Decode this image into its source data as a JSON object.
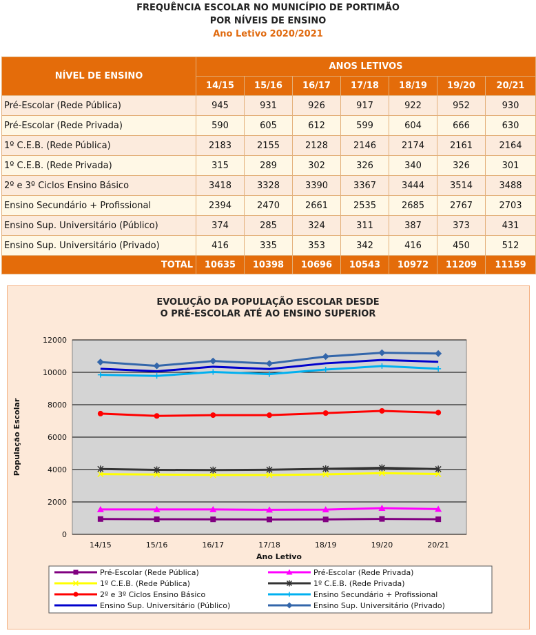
{
  "titles": {
    "line1": "FREQUÊNCIA ESCOLAR NO MUNICÍPIO DE PORTIMÃO",
    "line2": "POR NÍVEIS DE ENSINO",
    "line3": "Ano Letivo 2020/2021"
  },
  "table": {
    "level_header": "NÍVEL DE ENSINO",
    "years_header": "ANOS LETIVOS",
    "years": [
      "14/15",
      "15/16",
      "16/17",
      "17/18",
      "18/19",
      "19/20",
      "20/21"
    ],
    "rows": [
      {
        "label": "Pré-Escolar (Rede Pública)",
        "values": [
          "945",
          "931",
          "926",
          "917",
          "922",
          "952",
          "930"
        ]
      },
      {
        "label": "Pré-Escolar (Rede Privada)",
        "values": [
          "590",
          "605",
          "612",
          "599",
          "604",
          "666",
          "630"
        ]
      },
      {
        "label": "1º C.E.B. (Rede Pública)",
        "values": [
          "2183",
          "2155",
          "2128",
          "2146",
          "2174",
          "2161",
          "2164"
        ]
      },
      {
        "label": "1º C.E.B.  (Rede Privada)",
        "values": [
          "315",
          "289",
          "302",
          "326",
          "340",
          "326",
          "301"
        ]
      },
      {
        "label": "2º e 3º Ciclos Ensino Básico",
        "values": [
          "3418",
          "3328",
          "3390",
          "3367",
          "3444",
          "3514",
          "3488"
        ]
      },
      {
        "label": "Ensino Secundário + Profissional",
        "values": [
          "2394",
          "2470",
          "2661",
          "2535",
          "2685",
          "2767",
          "2703"
        ]
      },
      {
        "label": "Ensino Sup. Universitário  (Público)",
        "values": [
          "374",
          "285",
          "324",
          "311",
          "387",
          "373",
          "431"
        ]
      },
      {
        "label": "Ensino Sup. Universitário  (Privado)",
        "values": [
          "416",
          "335",
          "353",
          "342",
          "416",
          "450",
          "512"
        ]
      }
    ],
    "total_label": "TOTAL",
    "totals": [
      "10635",
      "10398",
      "10696",
      "10543",
      "10972",
      "11209",
      "11159"
    ]
  },
  "chart_data": {
    "type": "line",
    "title_line1": "EVOLUÇÃO DA POPULAÇÃO ESCOLAR DESDE",
    "title_line2": "O PRÉ-ESCOLAR ATÉ AO ENSINO SUPERIOR",
    "xlabel": "Ano Letivo",
    "ylabel": "População Escolar",
    "ylim": [
      0,
      12000
    ],
    "yticks": [
      "0",
      "2000",
      "4000",
      "6000",
      "8000",
      "10000",
      "12000"
    ],
    "categories": [
      "14/15",
      "15/16",
      "16/17",
      "17/18",
      "18/19",
      "19/20",
      "20/21"
    ],
    "series": [
      {
        "name": "Pré-Escolar (Rede Pública)",
        "color": "#800080",
        "marker": "square",
        "values": [
          945,
          931,
          926,
          917,
          922,
          952,
          930
        ]
      },
      {
        "name": "Pré-Escolar (Rede Privada)",
        "color": "#FF00FF",
        "marker": "triangle",
        "values": [
          1535,
          1536,
          1538,
          1516,
          1526,
          1618,
          1560
        ]
      },
      {
        "name": "1º C.E.B. (Rede Pública)",
        "color": "#FFFF00",
        "marker": "x",
        "values": [
          3718,
          3691,
          3666,
          3662,
          3700,
          3779,
          3724
        ]
      },
      {
        "name": "1º C.E.B.  (Rede Privada)",
        "color": "#333333",
        "marker": "star",
        "values": [
          4033,
          3980,
          3968,
          3988,
          4040,
          4105,
          4025
        ]
      },
      {
        "name": "2º e 3º Ciclos Ensino Básico",
        "color": "#FF0000",
        "marker": "circle",
        "values": [
          7451,
          7308,
          7358,
          7355,
          7484,
          7619,
          7513
        ]
      },
      {
        "name": "Ensino Secundário + Profissional",
        "color": "#00B0F0",
        "marker": "plus",
        "values": [
          9845,
          9778,
          10019,
          9890,
          10169,
          10386,
          10216
        ]
      },
      {
        "name": "Ensino Sup. Universitário  (Público)",
        "color": "#0000CC",
        "marker": "none",
        "values": [
          10219,
          10063,
          10343,
          10201,
          10556,
          10759,
          10647
        ]
      },
      {
        "name": "Ensino Sup. Universitário  (Privado)",
        "color": "#3366AA",
        "marker": "diamond",
        "values": [
          10635,
          10398,
          10696,
          10543,
          10972,
          11209,
          11159
        ]
      }
    ]
  }
}
